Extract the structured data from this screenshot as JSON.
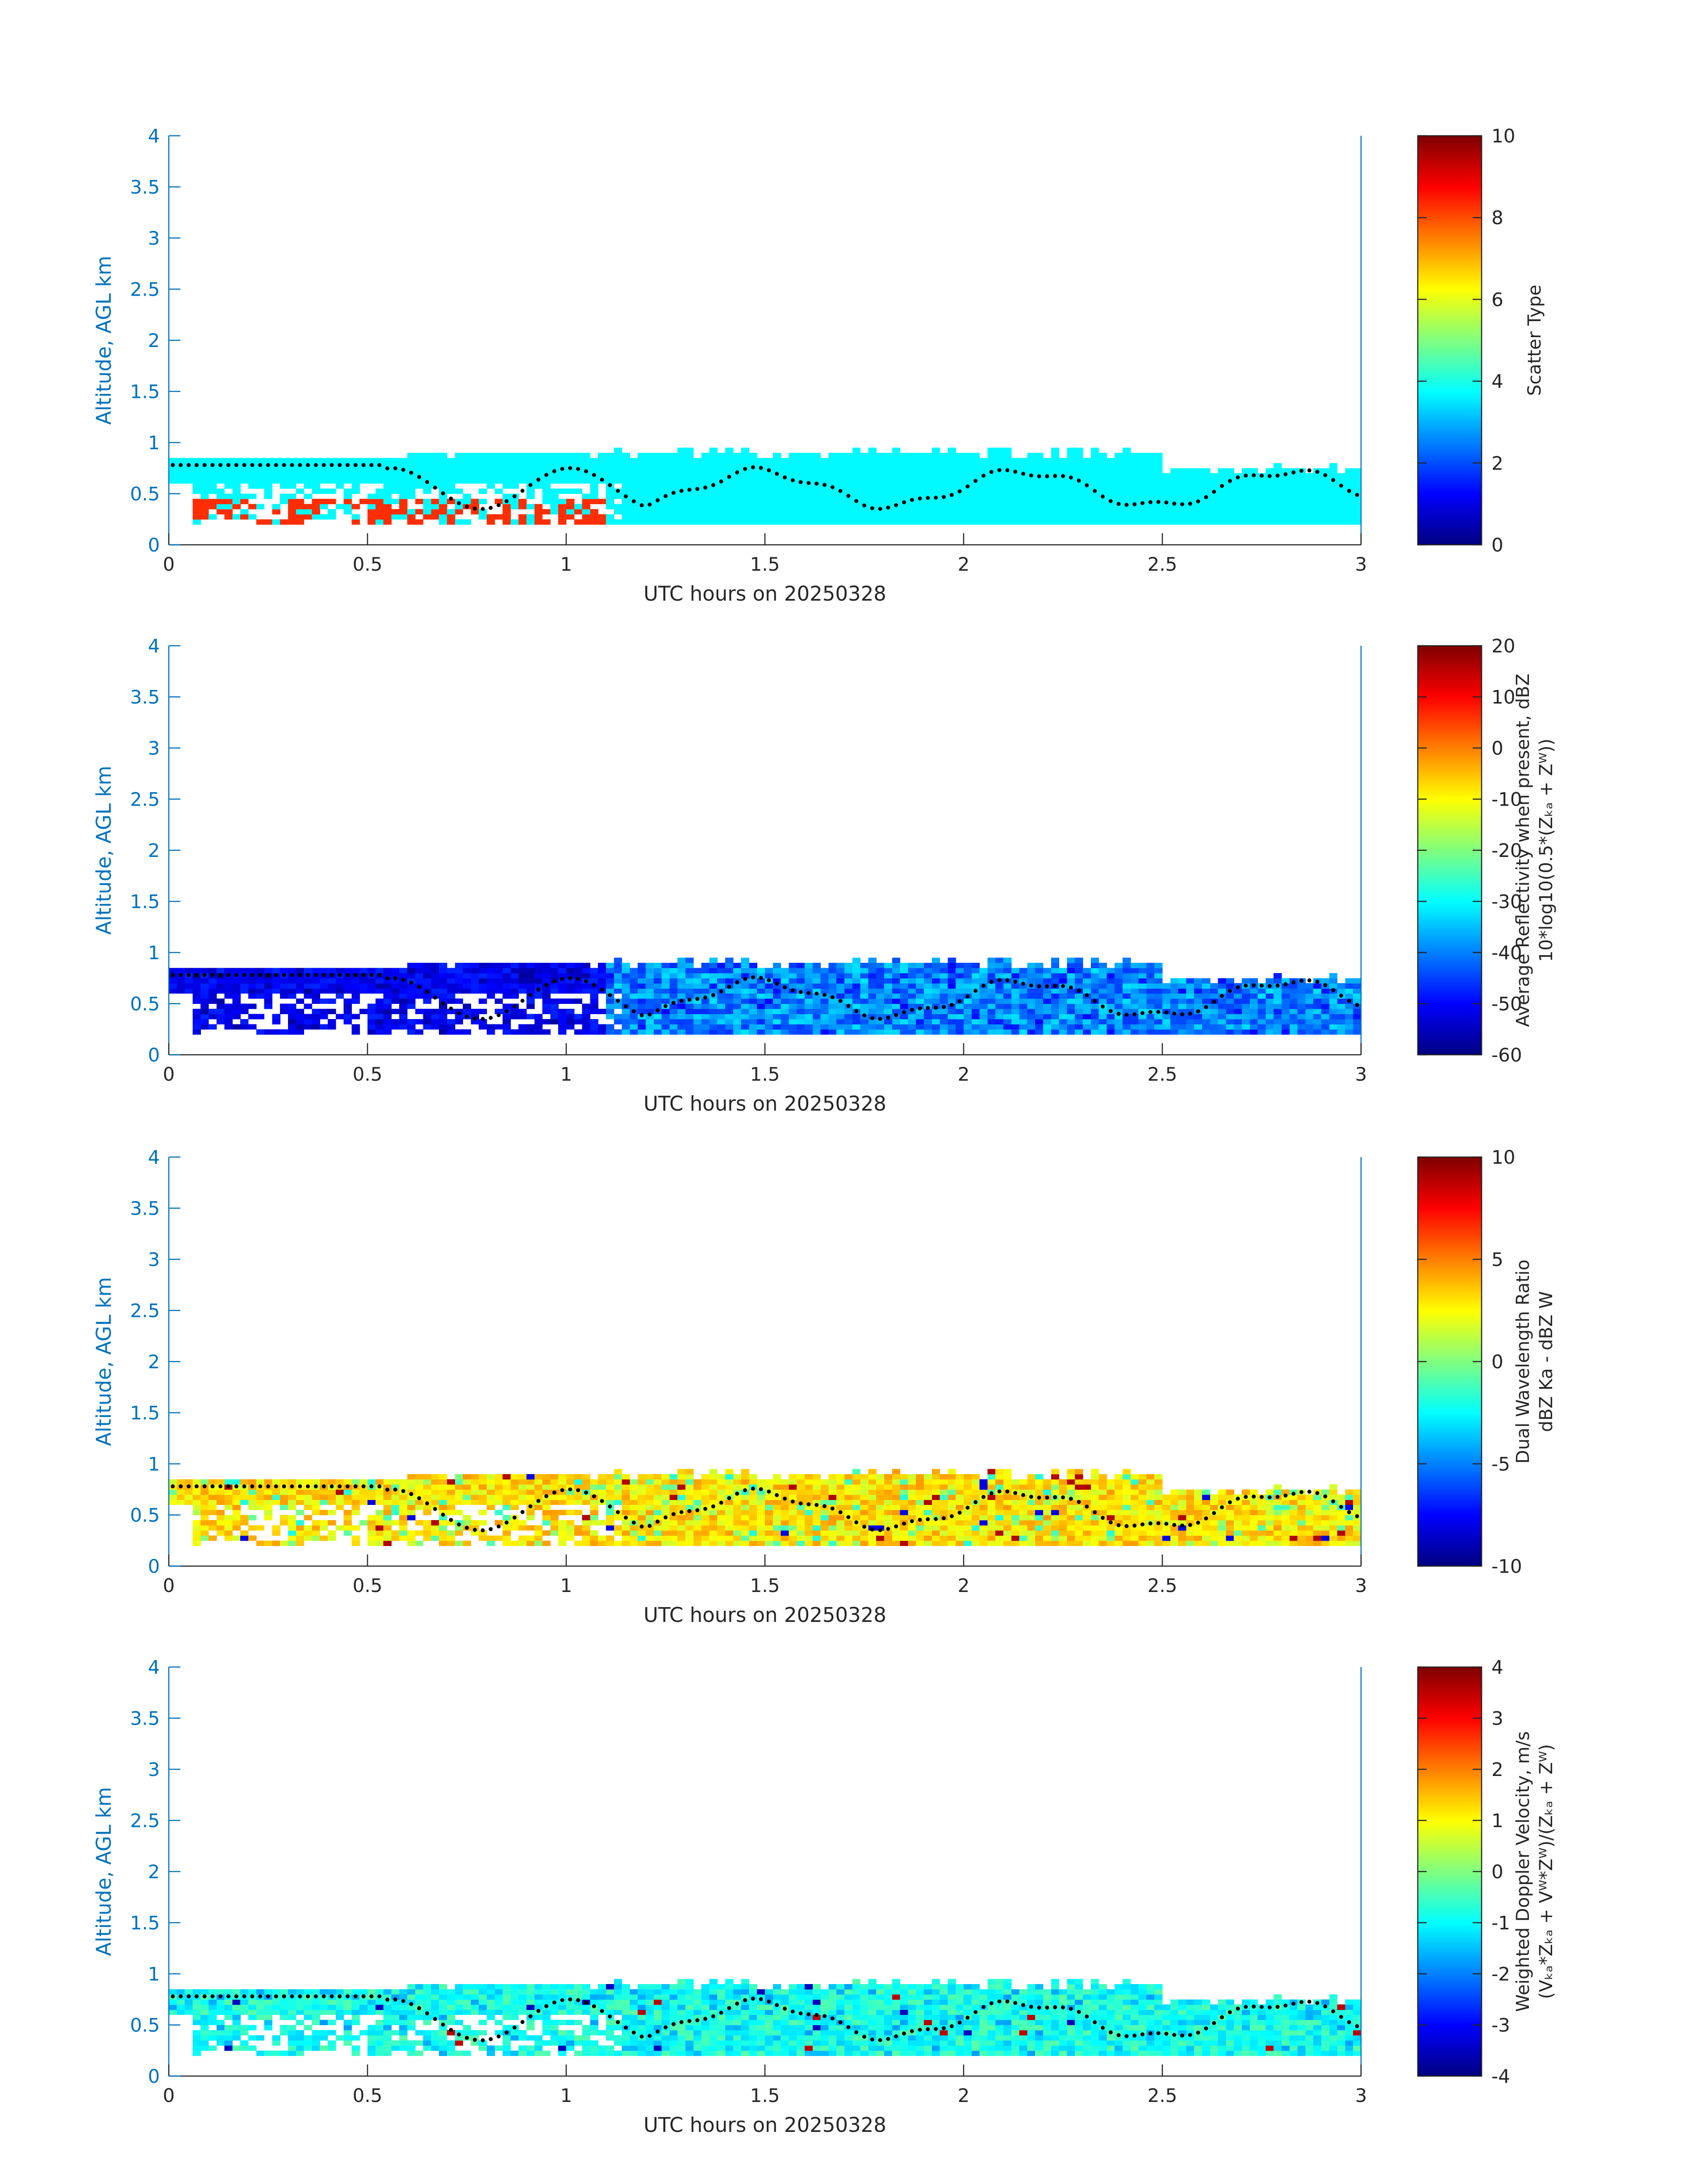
{
  "figure": {
    "date": "20250328"
  },
  "chart_data": [
    {
      "type": "heatmap",
      "title": "",
      "xlabel": "UTC hours on 20250328",
      "ylabel": "Altitude, AGL km",
      "xlim": [
        0,
        3
      ],
      "ylim": [
        0,
        4
      ],
      "xticks": [
        0,
        0.5,
        1,
        1.5,
        2,
        2.5,
        3
      ],
      "xtick_labels": [
        "0",
        "0.5",
        "1",
        "1.5",
        "2",
        "2.5",
        "3"
      ],
      "yticks": [
        0,
        0.5,
        1,
        1.5,
        2,
        2.5,
        3,
        3.5,
        4
      ],
      "ytick_labels": [
        "0",
        "0.5",
        "1",
        "1.5",
        "2",
        "2.5",
        "3",
        "3.5",
        "4"
      ],
      "colormap": "jet",
      "colorbar": {
        "label_lines": [
          "Scatter Type"
        ],
        "clim": [
          0,
          10
        ],
        "ticks": [
          0,
          2,
          4,
          6,
          8,
          10
        ],
        "tick_labels": [
          "0",
          "2",
          "4",
          "6",
          "8",
          "10"
        ]
      },
      "field": "scatter type",
      "cloud_layer_km": [
        0.2,
        0.95
      ],
      "dominant_value": 3.7,
      "secondary_value": 8.3,
      "secondary_region": {
        "x": [
          0.05,
          1.1
        ],
        "y": [
          0.2,
          0.45
        ]
      },
      "grid": false,
      "overlay": "black dotted line tracing an altitude between about 0.35 and 0.8 km"
    },
    {
      "type": "heatmap",
      "title": "",
      "xlabel": "UTC hours on 20250328",
      "ylabel": "Altitude, AGL km",
      "xlim": [
        0,
        3
      ],
      "ylim": [
        0,
        4
      ],
      "xticks": [
        0,
        0.5,
        1,
        1.5,
        2,
        2.5,
        3
      ],
      "xtick_labels": [
        "0",
        "0.5",
        "1",
        "1.5",
        "2",
        "2.5",
        "3"
      ],
      "yticks": [
        0,
        0.5,
        1,
        1.5,
        2,
        2.5,
        3,
        3.5,
        4
      ],
      "ytick_labels": [
        "0",
        "0.5",
        "1",
        "1.5",
        "2",
        "2.5",
        "3",
        "3.5",
        "4"
      ],
      "colormap": "jet",
      "colorbar": {
        "label_lines": [
          "Average Reflectivity when present, dBZ",
          "10*log10(0.5*(Zₖₐ + Zᵂ))"
        ],
        "clim": [
          -60,
          20
        ],
        "ticks": [
          -60,
          -50,
          -40,
          -30,
          -20,
          -10,
          0,
          10,
          20
        ],
        "tick_labels": [
          "-60",
          "-50",
          "-40",
          "-30",
          "-20",
          "-10",
          "0",
          "10",
          "20"
        ]
      },
      "field": "reflectivity",
      "cloud_layer_km": [
        0.2,
        0.95
      ],
      "value_range_dBZ": [
        -58,
        -32
      ],
      "grid": false,
      "overlay": "black dotted line tracing an altitude between about 0.35 and 0.8 km"
    },
    {
      "type": "heatmap",
      "title": "",
      "xlabel": "UTC hours on 20250328",
      "ylabel": "Altitude, AGL km",
      "xlim": [
        0,
        3
      ],
      "ylim": [
        0,
        4
      ],
      "xticks": [
        0,
        0.5,
        1,
        1.5,
        2,
        2.5,
        3
      ],
      "xtick_labels": [
        "0",
        "0.5",
        "1",
        "1.5",
        "2",
        "2.5",
        "3"
      ],
      "yticks": [
        0,
        0.5,
        1,
        1.5,
        2,
        2.5,
        3,
        3.5,
        4
      ],
      "ytick_labels": [
        "0",
        "0.5",
        "1",
        "1.5",
        "2",
        "2.5",
        "3",
        "3.5",
        "4"
      ],
      "colormap": "jet",
      "colorbar": {
        "label_lines": [
          "Dual Wavelength Ratio",
          "dBZ Ka - dBZ W"
        ],
        "clim": [
          -10,
          10
        ],
        "ticks": [
          -10,
          -5,
          0,
          5,
          10
        ],
        "tick_labels": [
          "-10",
          "-5",
          "0",
          "5",
          "10"
        ]
      },
      "field": "dual wavelength ratio",
      "cloud_layer_km": [
        0.2,
        0.95
      ],
      "value_range_dB": [
        -8,
        9
      ],
      "typical_value_dB": 2.5,
      "grid": false,
      "overlay": "black dotted line tracing an altitude between about 0.35 and 0.8 km"
    },
    {
      "type": "heatmap",
      "title": "",
      "xlabel": "UTC hours on 20250328",
      "ylabel": "Altitude, AGL km",
      "xlim": [
        0,
        3
      ],
      "ylim": [
        0,
        4
      ],
      "xticks": [
        0,
        0.5,
        1,
        1.5,
        2,
        2.5,
        3
      ],
      "xtick_labels": [
        "0",
        "0.5",
        "1",
        "1.5",
        "2",
        "2.5",
        "3"
      ],
      "yticks": [
        0,
        0.5,
        1,
        1.5,
        2,
        2.5,
        3,
        3.5,
        4
      ],
      "ytick_labels": [
        "0",
        "0.5",
        "1",
        "1.5",
        "2",
        "2.5",
        "3",
        "3.5",
        "4"
      ],
      "colormap": "jet",
      "colorbar": {
        "label_lines": [
          "Weighted Doppler Velocity, m/s",
          "(Vₖₐ*Zₖₐ + Vᵂ*Zᵂ)/(Zₖₐ + Zᵂ)"
        ],
        "clim": [
          -4,
          4
        ],
        "ticks": [
          -4,
          -3,
          -2,
          -1,
          0,
          1,
          2,
          3,
          4
        ],
        "tick_labels": [
          "-4",
          "-3",
          "-2",
          "-1",
          "0",
          "1",
          "2",
          "3",
          "4"
        ]
      },
      "field": "weighted doppler velocity",
      "cloud_layer_km": [
        0.2,
        0.95
      ],
      "value_range_ms": [
        -3.5,
        3.5
      ],
      "typical_value_ms": -0.9,
      "grid": false,
      "overlay": "black dotted line tracing an altitude between about 0.35 and 0.8 km"
    }
  ]
}
